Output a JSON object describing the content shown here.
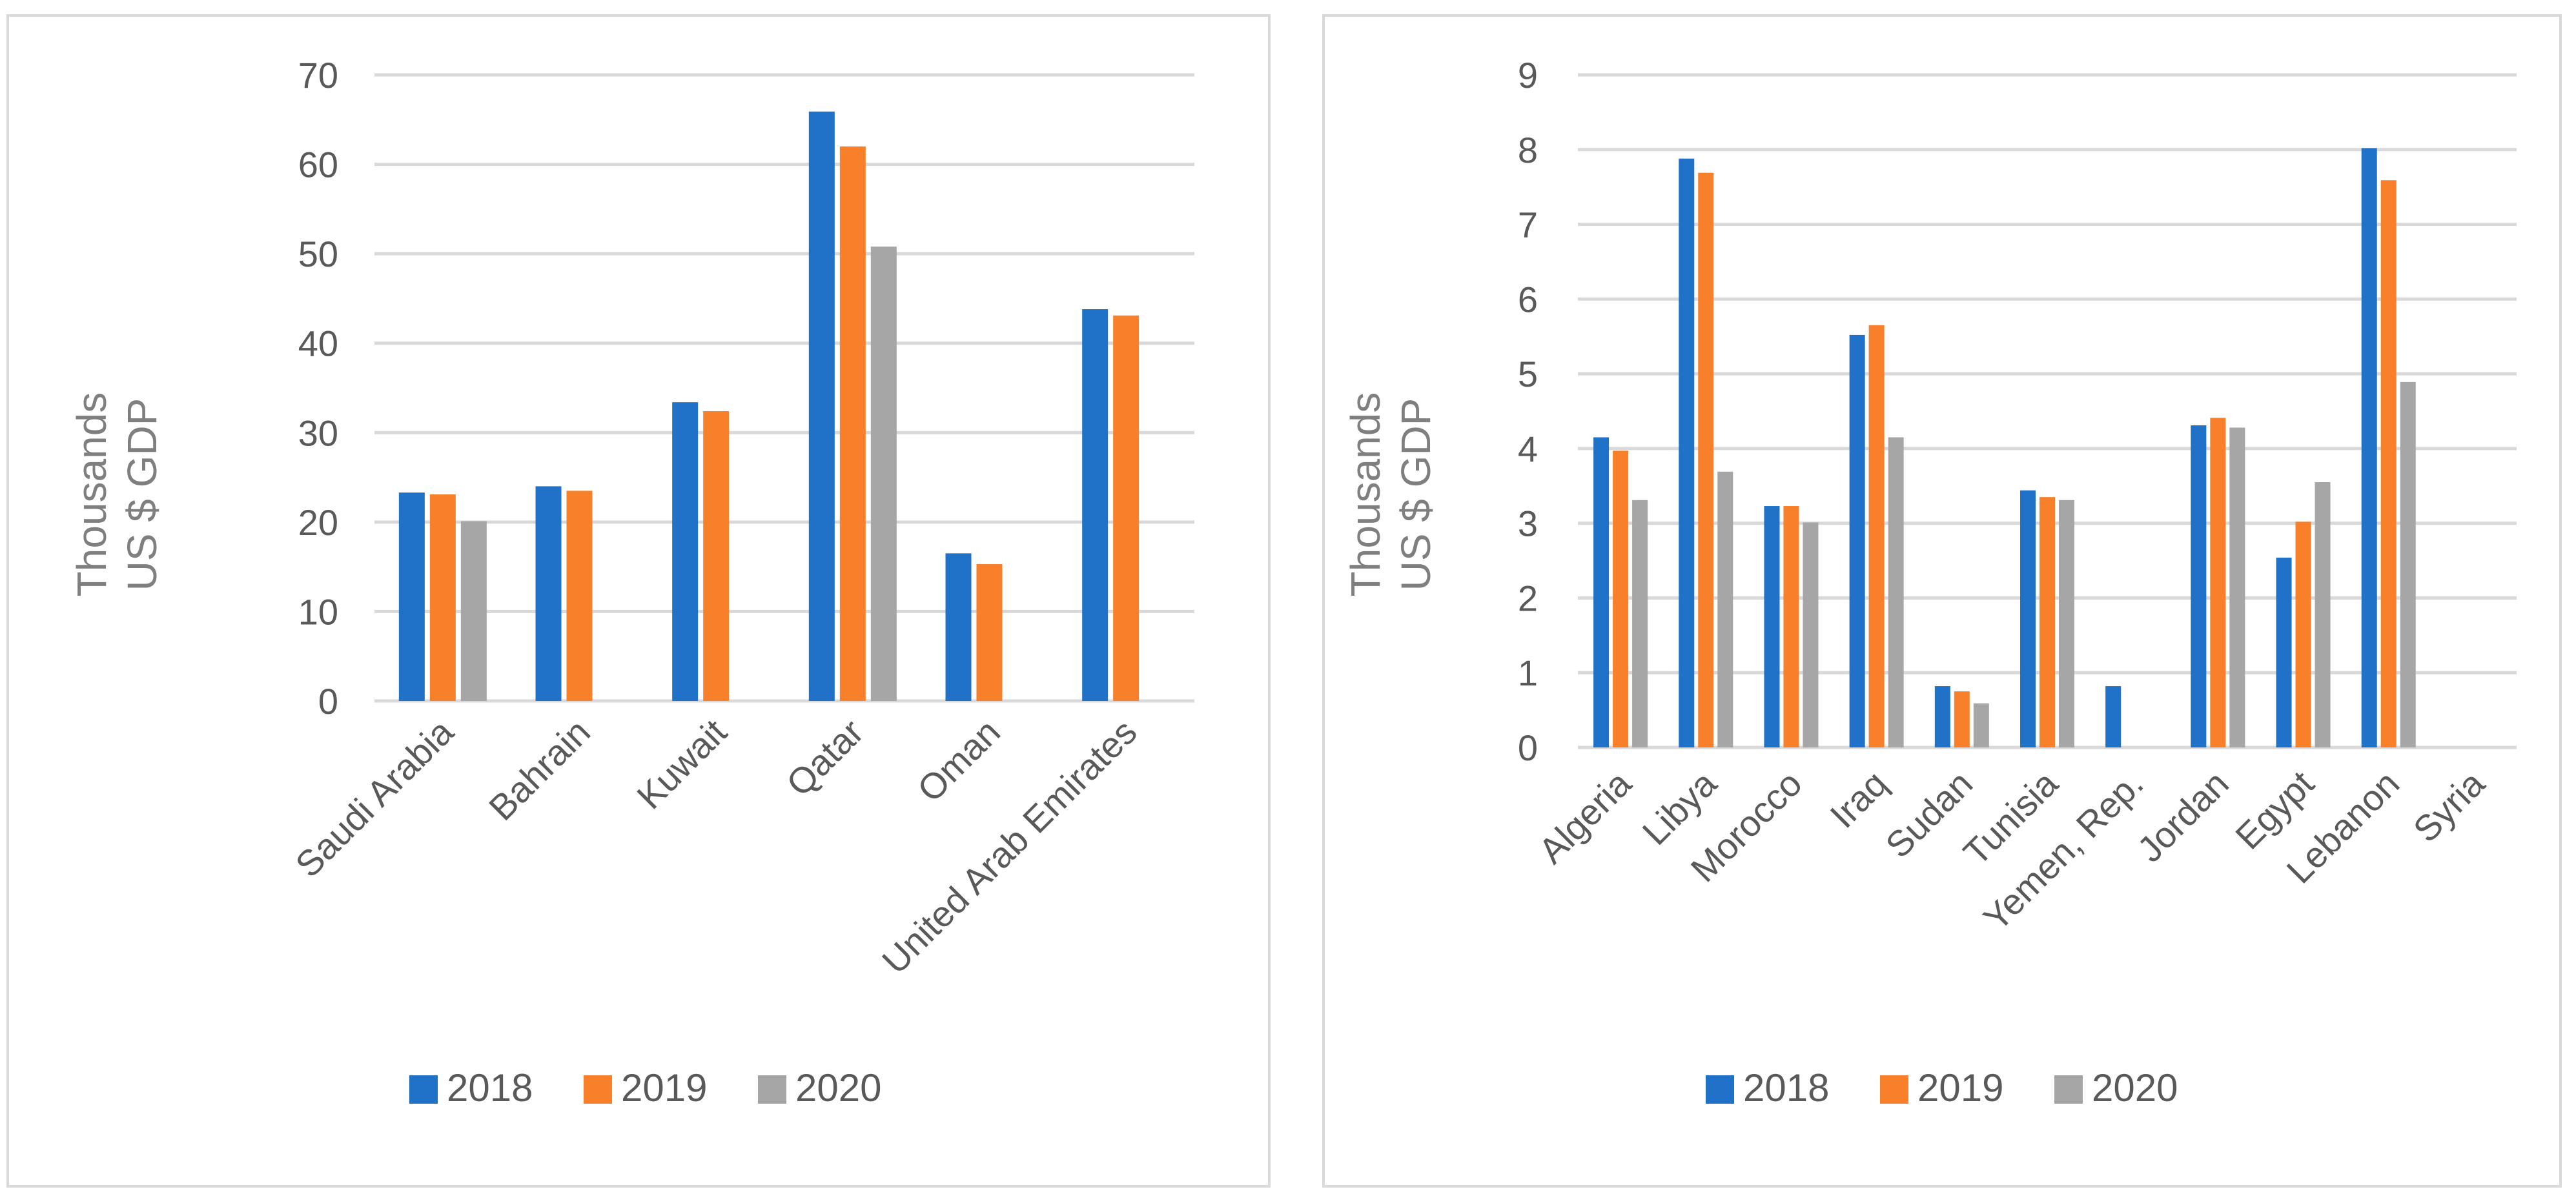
{
  "colors": {
    "2018": "#1f72c8",
    "2019": "#f8802a",
    "2020": "#a6a6a6"
  },
  "chart_data": [
    {
      "type": "bar",
      "title": "",
      "xlabel": "",
      "ylabel_lines": [
        "Thousands",
        "US $ GDP"
      ],
      "ylim": [
        0,
        70
      ],
      "yticks": [
        "0",
        "10",
        "20",
        "30",
        "40",
        "50",
        "60",
        "70"
      ],
      "ytick_values": [
        0,
        10,
        20,
        30,
        40,
        50,
        60,
        70
      ],
      "categories": [
        "Saudi Arabia",
        "Bahrain",
        "Kuwait",
        "Qatar",
        "Oman",
        "United Arab Emirates"
      ],
      "series": [
        {
          "name": "2018",
          "values": [
            23.3,
            24.0,
            33.4,
            65.9,
            16.5,
            43.8
          ]
        },
        {
          "name": "2019",
          "values": [
            23.1,
            23.5,
            32.4,
            62.0,
            15.3,
            43.1
          ]
        },
        {
          "name": "2020",
          "values": [
            20.1,
            null,
            null,
            50.8,
            null,
            null
          ]
        }
      ],
      "legend": [
        "2018",
        "2019",
        "2020"
      ],
      "legend_position": "bottom"
    },
    {
      "type": "bar",
      "title": "",
      "xlabel": "",
      "ylabel_lines": [
        "Thousands",
        "US $ GDP"
      ],
      "ylim": [
        0,
        9
      ],
      "yticks": [
        "0",
        "1",
        "2",
        "3",
        "4",
        "5",
        "6",
        "7",
        "8",
        "9"
      ],
      "ytick_values": [
        0,
        1,
        2,
        3,
        4,
        5,
        6,
        7,
        8,
        9
      ],
      "categories": [
        "Algeria",
        "Libya",
        "Morocco",
        "Iraq",
        "Sudan",
        "Tunisia",
        "Yemen, Rep.",
        "Jordan",
        "Egypt",
        "Lebanon",
        "Syria"
      ],
      "series": [
        {
          "name": "2018",
          "values": [
            4.15,
            7.88,
            3.23,
            5.52,
            0.82,
            3.44,
            0.82,
            4.31,
            2.54,
            8.02,
            null
          ]
        },
        {
          "name": "2019",
          "values": [
            3.97,
            7.69,
            3.23,
            5.65,
            0.75,
            3.35,
            null,
            4.41,
            3.02,
            7.59,
            null
          ]
        },
        {
          "name": "2020",
          "values": [
            3.31,
            3.69,
            3.01,
            4.15,
            0.59,
            3.31,
            null,
            4.28,
            3.55,
            4.89,
            null
          ]
        }
      ],
      "legend": [
        "2018",
        "2019",
        "2020"
      ],
      "legend_position": "bottom"
    }
  ]
}
